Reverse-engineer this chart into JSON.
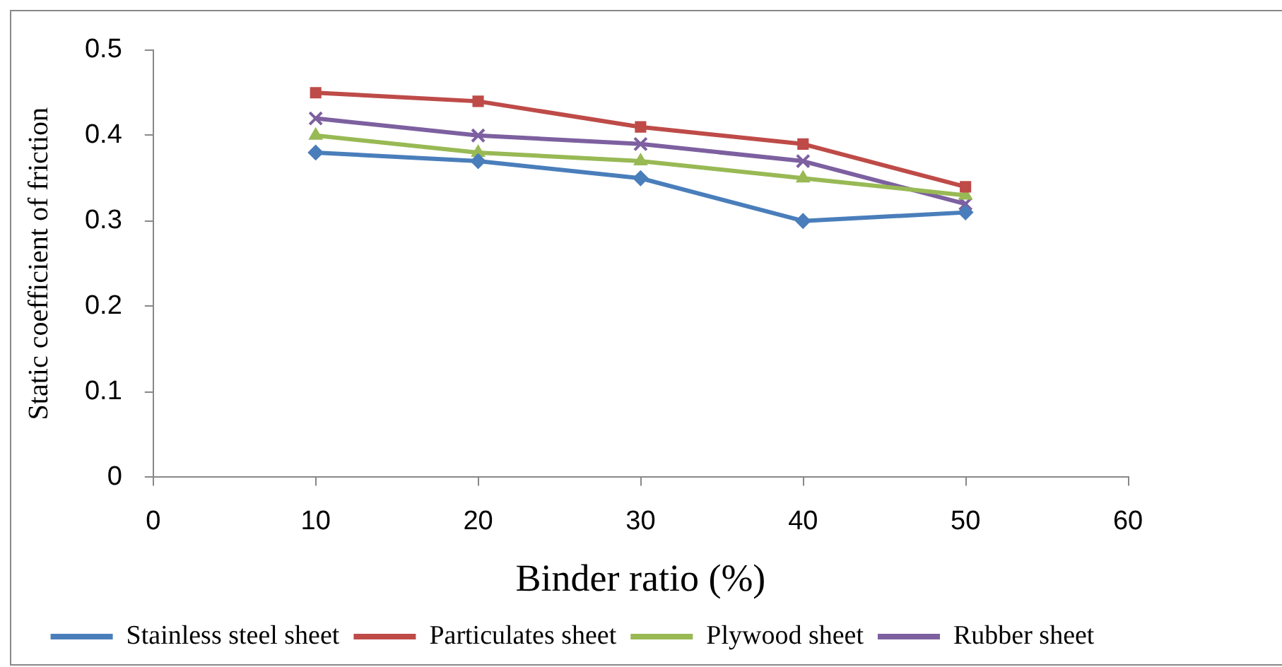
{
  "chart_data": {
    "type": "line",
    "xlabel": "Binder ratio (%)",
    "ylabel": "Static coefficient of friction",
    "x": [
      10,
      20,
      30,
      40,
      50
    ],
    "series": [
      {
        "name": "Stainless steel sheet",
        "color": "#4a7ebb",
        "values": [
          0.38,
          0.37,
          0.35,
          0.3,
          0.31
        ],
        "marker": "diamond"
      },
      {
        "name": "Particulates sheet",
        "color": "#be4b48",
        "values": [
          0.45,
          0.44,
          0.41,
          0.39,
          0.34
        ],
        "marker": "square"
      },
      {
        "name": "Plywood sheet",
        "color": "#98b954",
        "values": [
          0.4,
          0.38,
          0.37,
          0.35,
          0.33
        ],
        "marker": "triangle"
      },
      {
        "name": "Rubber sheet",
        "color": "#7d60a0",
        "values": [
          0.42,
          0.4,
          0.39,
          0.37,
          0.32
        ],
        "marker": "cross"
      }
    ],
    "xlim": [
      0,
      60
    ],
    "xticks": [
      0,
      10,
      20,
      30,
      40,
      50,
      60
    ],
    "ylim": [
      0,
      0.5
    ],
    "yticks": [
      0,
      0.1,
      0.2,
      0.3,
      0.4,
      0.5
    ],
    "grid": false,
    "legend": "bottom",
    "line_style": "solid"
  }
}
